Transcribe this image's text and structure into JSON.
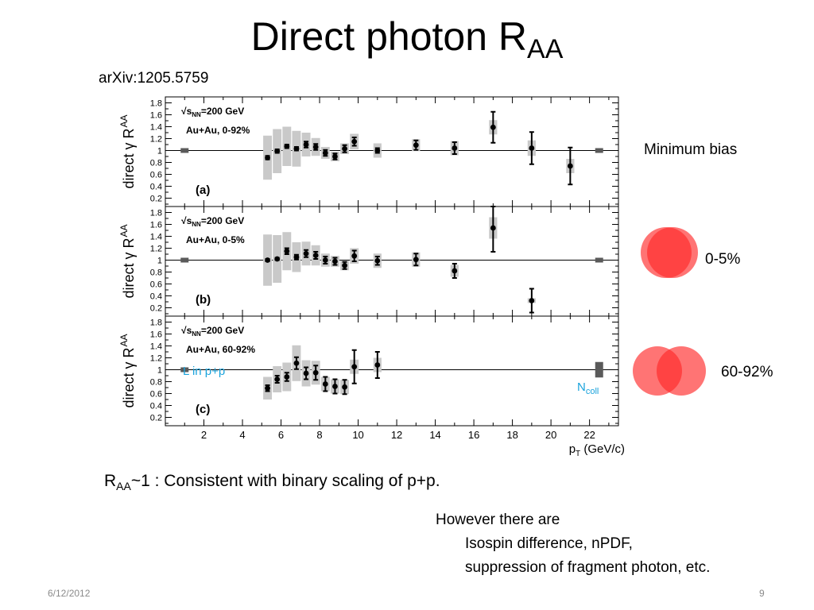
{
  "slide": {
    "title_main": "Direct photon R",
    "title_sub": "AA",
    "source": "arXiv:1205.5759",
    "conclusion_main": "R",
    "conclusion_sub": "AA",
    "conclusion_rest": "~1 :  Consistent with binary scaling of p+p.",
    "caveats": [
      "However there are",
      "Isospin difference, nPDF,",
      "suppression of fragment photon, etc."
    ],
    "date": "6/12/2012",
    "page": "9"
  },
  "side_labels": {
    "minbias": "Minimum bias",
    "central": "0-5%",
    "peripheral": "60-92%"
  },
  "colors": {
    "circle_fill": "#ff2a2a",
    "syst_band": "#c9c9c9",
    "norm_box": "#5a5a5a",
    "annotation": "#1aa3dc"
  },
  "chart_data": {
    "type": "scatter",
    "x_axis": {
      "label": "p",
      "label_sub": "T",
      "unit": " (GeV/c)",
      "range": [
        0,
        23.5
      ],
      "ticks": [
        "2",
        "4",
        "6",
        "8",
        "10",
        "12",
        "14",
        "16",
        "18",
        "20",
        "22"
      ]
    },
    "y_axis": {
      "label": "direct γ R",
      "label_sub": "AA",
      "range": [
        0.06,
        1.9
      ],
      "ticks": [
        "0.2",
        "0.4",
        "0.6",
        "0.8",
        "1",
        "1.2",
        "1.4",
        "1.6",
        "1.8"
      ]
    },
    "energy_label": "=200 GeV",
    "energy_sym": "s",
    "energy_sub": "NN",
    "annotations": {
      "pp_norm": "L in p+p",
      "ncoll": "N",
      "ncoll_sub": "coll"
    },
    "panels": [
      {
        "id": "a",
        "tag": "(a)",
        "system": "Au+Au, 0-92%",
        "norm_left": 0.04,
        "norm_right": 0.04,
        "points": [
          {
            "x": 5.3,
            "y": 0.88,
            "stat": 0.03,
            "sys": 0.37
          },
          {
            "x": 5.8,
            "y": 0.99,
            "stat": 0.03,
            "sys": 0.37
          },
          {
            "x": 6.3,
            "y": 1.07,
            "stat": 0.03,
            "sys": 0.33
          },
          {
            "x": 6.8,
            "y": 1.03,
            "stat": 0.03,
            "sys": 0.3
          },
          {
            "x": 7.3,
            "y": 1.1,
            "stat": 0.05,
            "sys": 0.2
          },
          {
            "x": 7.8,
            "y": 1.06,
            "stat": 0.05,
            "sys": 0.15
          },
          {
            "x": 8.3,
            "y": 0.96,
            "stat": 0.05,
            "sys": 0.1
          },
          {
            "x": 8.8,
            "y": 0.9,
            "stat": 0.05,
            "sys": 0.08
          },
          {
            "x": 9.3,
            "y": 1.03,
            "stat": 0.06,
            "sys": 0.09
          },
          {
            "x": 9.8,
            "y": 1.15,
            "stat": 0.07,
            "sys": 0.13
          },
          {
            "x": 11.0,
            "y": 1.0,
            "stat": 0.04,
            "sys": 0.12
          },
          {
            "x": 13.0,
            "y": 1.09,
            "stat": 0.08,
            "sys": 0.1
          },
          {
            "x": 15.0,
            "y": 1.04,
            "stat": 0.1,
            "sys": 0.12
          },
          {
            "x": 17.0,
            "y": 1.39,
            "stat": 0.26,
            "sys": 0.12
          },
          {
            "x": 19.0,
            "y": 1.04,
            "stat": 0.27,
            "sys": 0.13
          },
          {
            "x": 21.0,
            "y": 0.74,
            "stat": 0.31,
            "sys": 0.12
          }
        ]
      },
      {
        "id": "b",
        "tag": "(b)",
        "system": "Au+Au, 0-5%",
        "norm_left": 0.04,
        "norm_right": 0.04,
        "points": [
          {
            "x": 5.3,
            "y": 1.0,
            "stat": 0.02,
            "sys": 0.43
          },
          {
            "x": 5.8,
            "y": 1.02,
            "stat": 0.02,
            "sys": 0.4
          },
          {
            "x": 6.3,
            "y": 1.15,
            "stat": 0.05,
            "sys": 0.32
          },
          {
            "x": 6.8,
            "y": 1.05,
            "stat": 0.04,
            "sys": 0.25
          },
          {
            "x": 7.3,
            "y": 1.11,
            "stat": 0.06,
            "sys": 0.2
          },
          {
            "x": 7.8,
            "y": 1.08,
            "stat": 0.06,
            "sys": 0.17
          },
          {
            "x": 8.3,
            "y": 1.0,
            "stat": 0.06,
            "sys": 0.11
          },
          {
            "x": 8.8,
            "y": 0.98,
            "stat": 0.06,
            "sys": 0.09
          },
          {
            "x": 9.3,
            "y": 0.91,
            "stat": 0.06,
            "sys": 0.08
          },
          {
            "x": 9.8,
            "y": 1.07,
            "stat": 0.09,
            "sys": 0.13
          },
          {
            "x": 11.0,
            "y": 0.99,
            "stat": 0.07,
            "sys": 0.12
          },
          {
            "x": 13.0,
            "y": 1.01,
            "stat": 0.1,
            "sys": 0.12
          },
          {
            "x": 15.0,
            "y": 0.82,
            "stat": 0.12,
            "sys": 0.1
          },
          {
            "x": 17.0,
            "y": 1.54,
            "stat": 0.4,
            "sys": 0.18
          },
          {
            "x": 19.0,
            "y": 0.32,
            "stat": 0.2,
            "sys": 0.04
          }
        ]
      },
      {
        "id": "c",
        "tag": "(c)",
        "system": "Au+Au, 60-92%",
        "norm_left": 0.04,
        "norm_right": 0.13,
        "points": [
          {
            "x": 5.3,
            "y": 0.69,
            "stat": 0.05,
            "sys": 0.19
          },
          {
            "x": 5.8,
            "y": 0.84,
            "stat": 0.06,
            "sys": 0.22
          },
          {
            "x": 6.3,
            "y": 0.88,
            "stat": 0.07,
            "sys": 0.24
          },
          {
            "x": 6.8,
            "y": 1.11,
            "stat": 0.1,
            "sys": 0.3
          },
          {
            "x": 7.3,
            "y": 0.94,
            "stat": 0.1,
            "sys": 0.22
          },
          {
            "x": 7.8,
            "y": 0.95,
            "stat": 0.12,
            "sys": 0.2
          },
          {
            "x": 8.3,
            "y": 0.76,
            "stat": 0.12,
            "sys": 0.12
          },
          {
            "x": 8.8,
            "y": 0.72,
            "stat": 0.12,
            "sys": 0.12
          },
          {
            "x": 9.3,
            "y": 0.71,
            "stat": 0.12,
            "sys": 0.12
          },
          {
            "x": 9.8,
            "y": 1.05,
            "stat": 0.28,
            "sys": 0.12
          },
          {
            "x": 11.0,
            "y": 1.08,
            "stat": 0.22,
            "sys": 0.12
          }
        ]
      }
    ]
  }
}
